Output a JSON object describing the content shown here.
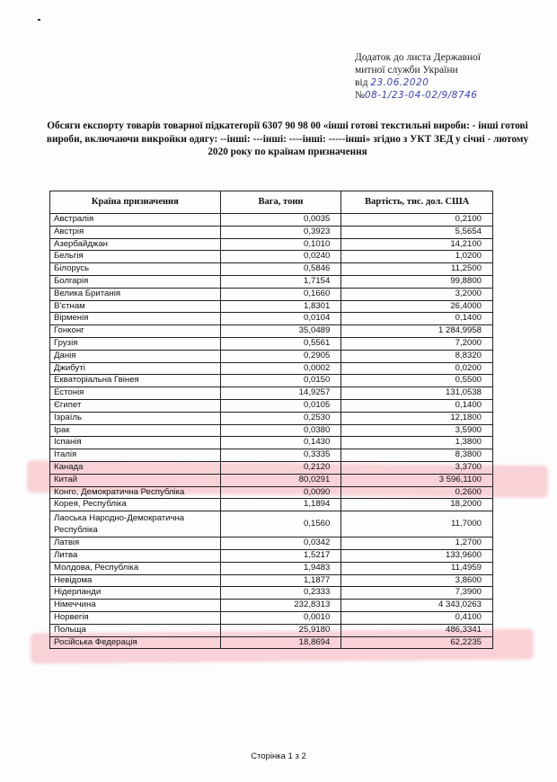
{
  "header": {
    "address_lines": [
      "Додаток до листа Державної",
      "митної служби України"
    ],
    "date_prefix": "від",
    "date_handwritten": "23.06.2020",
    "number_prefix": "№",
    "number_handwritten": "08-1/23-04-02/9/8746"
  },
  "title": "Обсяги експорту товарів товарної підкатегорії  6307 90 98 00 «інші готові текстильні вироби: - інші готові вироби, включаючи викройки одягу: --інші: ---інші: ----інші: -----інші» згідно з УКТ ЗЕД у січні - лютому 2020 року по країнам призначення",
  "table": {
    "columns": [
      "Країна призначення",
      "Вага, тонн",
      "Вартість, тис. дол. США"
    ],
    "rows": [
      [
        "Австралія",
        "0,0035",
        "0,2100"
      ],
      [
        "Австрія",
        "0,3923",
        "5,5654"
      ],
      [
        "Азербайджан",
        "0,1010",
        "14,2100"
      ],
      [
        "Бельгія",
        "0,0240",
        "1,0200"
      ],
      [
        "Білорусь",
        "0,5846",
        "11,2500"
      ],
      [
        "Болгарія",
        "1,7154",
        "99,8800"
      ],
      [
        "Велика Британія",
        "0,1660",
        "3,2000"
      ],
      [
        "В'єтнам",
        "1,8301",
        "26,4000"
      ],
      [
        "Вірменія",
        "0,0104",
        "0,1400"
      ],
      [
        "Гонконг",
        "35,0489",
        "1 284,9958"
      ],
      [
        "Грузія",
        "0,5561",
        "7,2000"
      ],
      [
        "Данія",
        "0,2905",
        "8,8320"
      ],
      [
        "Джибуті",
        "0,0002",
        "0,0200"
      ],
      [
        "Екваторіальна Гвінея",
        "0,0150",
        "0,5500"
      ],
      [
        "Естонія",
        "14,9257",
        "131,0538"
      ],
      [
        "Єгипет",
        "0,0105",
        "0,1400"
      ],
      [
        "Ізраїль",
        "0,2530",
        "12,1800"
      ],
      [
        "Ірак",
        "0,0380",
        "3,5900"
      ],
      [
        "Іспанія",
        "0,1430",
        "1,3800"
      ],
      [
        "Італія",
        "0,3335",
        "8,3800"
      ],
      [
        "Канада",
        "0,2120",
        "3,3700"
      ],
      [
        "Китай",
        "80,0291",
        "3 596,1100"
      ],
      [
        "Конго, Демократична Республіка",
        "0,0090",
        "0,2600"
      ],
      [
        "Корея, Республіка",
        "1,1894",
        "18,2000"
      ],
      [
        "Лаоська Народно-Демократична Республіка",
        "0,1560",
        "11,7000"
      ],
      [
        "Латвія",
        "0,0342",
        "1,2700"
      ],
      [
        "Литва",
        "1,5217",
        "133,9600"
      ],
      [
        "Молдова, Республіка",
        "1,9483",
        "11,4959"
      ],
      [
        "Невідома",
        "1,1877",
        "3,8600"
      ],
      [
        "Нідерланди",
        "0,2333",
        "7,3900"
      ],
      [
        "Німеччина",
        "232,8313",
        "4 343,0263"
      ],
      [
        "Норвегія",
        "0,0010",
        "0,4100"
      ],
      [
        "Польща",
        "25,9180",
        "486,3341"
      ],
      [
        "Російська Федерація",
        "18,8694",
        "62,2235"
      ]
    ],
    "highlighted_rows": [
      "Канада",
      "Китай",
      "Польща",
      "Російська Федерація"
    ],
    "highlight_color": "#f08c96"
  },
  "footer": {
    "page_label": "Сторінка  1 з 2"
  }
}
